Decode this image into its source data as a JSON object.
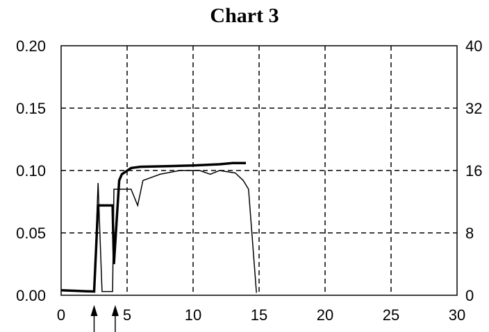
{
  "chart_data": {
    "type": "line",
    "title": "Chart 3",
    "xlabel": "",
    "ylabel": "",
    "xlim": [
      0,
      30
    ],
    "ylim_left": [
      0.0,
      0.2
    ],
    "ylim_right": [
      0,
      40
    ],
    "x_ticks": [
      "0",
      "5",
      "10",
      "15",
      "20",
      "25",
      "30"
    ],
    "y_left_ticks": [
      "0.00",
      "0.05",
      "0.10",
      "0.15",
      "0.20"
    ],
    "y_right_ticks": [
      "0",
      "8",
      "16",
      "32",
      "40"
    ],
    "grid": "dashed",
    "arrows_x": [
      2.5,
      4.1
    ],
    "series": [
      {
        "axis": "left",
        "style": "thick",
        "points": [
          [
            0,
            0.004
          ],
          [
            2.5,
            0.003
          ],
          [
            2.8,
            0.072
          ],
          [
            3.6,
            0.072
          ],
          [
            3.9,
            0.072
          ],
          [
            4.0,
            0.025
          ],
          [
            4.4,
            0.092
          ],
          [
            4.6,
            0.097
          ],
          [
            5.3,
            0.102
          ],
          [
            6.0,
            0.103
          ],
          [
            8,
            0.1035
          ],
          [
            10,
            0.104
          ],
          [
            12,
            0.105
          ],
          [
            13,
            0.106
          ],
          [
            14,
            0.106
          ]
        ]
      },
      {
        "axis": "left",
        "style": "thin",
        "points": [
          [
            2.5,
            0.003
          ],
          [
            2.8,
            0.09
          ],
          [
            3.1,
            0.003
          ],
          [
            3.9,
            0.003
          ],
          [
            4.0,
            0.085
          ],
          [
            5.3,
            0.085
          ],
          [
            5.8,
            0.072
          ],
          [
            6.2,
            0.092
          ],
          [
            7.5,
            0.097
          ],
          [
            9,
            0.1
          ],
          [
            10.5,
            0.1
          ],
          [
            11.3,
            0.097
          ],
          [
            12,
            0.1
          ],
          [
            13.2,
            0.098
          ],
          [
            13.8,
            0.092
          ],
          [
            14.2,
            0.085
          ],
          [
            14.8,
            0.002
          ]
        ]
      }
    ]
  }
}
